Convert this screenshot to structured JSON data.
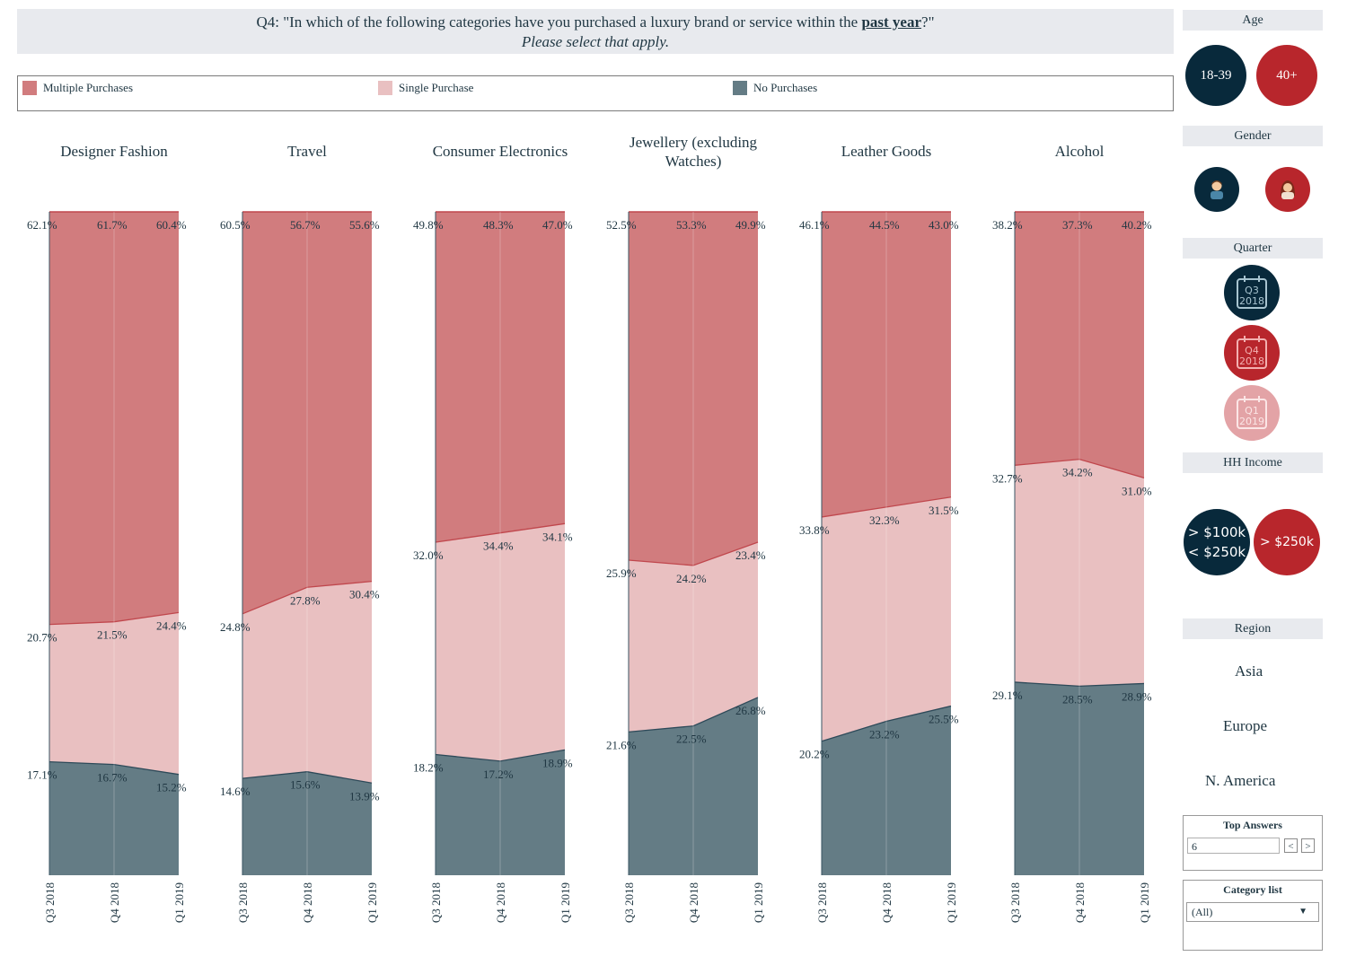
{
  "header": {
    "question_prefix": "Q4: \"In which of the following categories have you purchased a luxury brand or service within the ",
    "question_emphasis": "past year",
    "question_suffix": "?\"",
    "subtitle": "Please select that apply."
  },
  "legend": [
    {
      "label": "Multiple Purchases",
      "color": "#d17c7e"
    },
    {
      "label": "Single Purchase",
      "color": "#e9c0c1"
    },
    {
      "label": "No Purchases",
      "color": "#647c85"
    }
  ],
  "chart_data": {
    "type": "area",
    "stacked": true,
    "normalized": true,
    "quarters": [
      "Q3 2018",
      "Q4 2018",
      "Q1 2019"
    ],
    "series_order": [
      "No Purchases",
      "Single Purchase",
      "Multiple Purchases"
    ],
    "colors": {
      "multiple": "#d17c7e",
      "single": "#e9c0c1",
      "none": "#647c85",
      "multiple_line": "#c0474d",
      "none_line": "#2e4a59"
    },
    "categories": [
      {
        "name": "Designer Fashion",
        "multiple": [
          "62.1%",
          "61.7%",
          "60.4%"
        ],
        "single": [
          "20.7%",
          "21.5%",
          "24.4%"
        ],
        "none": [
          "17.1%",
          "16.7%",
          "15.2%"
        ]
      },
      {
        "name": "Travel",
        "multiple": [
          "60.5%",
          "56.7%",
          "55.6%"
        ],
        "single": [
          "24.8%",
          "27.8%",
          "30.4%"
        ],
        "none": [
          "14.6%",
          "15.6%",
          "13.9%"
        ]
      },
      {
        "name": "Consumer Electronics",
        "multiple": [
          "49.8%",
          "48.3%",
          "47.0%"
        ],
        "single": [
          "32.0%",
          "34.4%",
          "34.1%"
        ],
        "none": [
          "18.2%",
          "17.2%",
          "18.9%"
        ]
      },
      {
        "name": "Jewellery (excluding Watches)",
        "multiple": [
          "52.5%",
          "53.3%",
          "49.9%"
        ],
        "single": [
          "25.9%",
          "24.2%",
          "23.4%"
        ],
        "none": [
          "21.6%",
          "22.5%",
          "26.8%"
        ]
      },
      {
        "name": "Leather Goods",
        "multiple": [
          "46.1%",
          "44.5%",
          "43.0%"
        ],
        "single": [
          "33.8%",
          "32.3%",
          "31.5%"
        ],
        "none": [
          "20.2%",
          "23.2%",
          "25.5%"
        ]
      },
      {
        "name": "Alcohol",
        "multiple": [
          "38.2%",
          "37.3%",
          "40.2%"
        ],
        "single": [
          "32.7%",
          "34.2%",
          "31.0%"
        ],
        "none": [
          "29.1%",
          "28.5%",
          "28.9%"
        ]
      }
    ]
  },
  "filters": {
    "age": {
      "title": "Age",
      "options": [
        "18-39",
        "40+"
      ]
    },
    "gender": {
      "title": "Gender"
    },
    "quarter": {
      "title": "Quarter",
      "options": [
        {
          "q": "Q3",
          "y": "2018"
        },
        {
          "q": "Q4",
          "y": "2018"
        },
        {
          "q": "Q1",
          "y": "2019"
        }
      ]
    },
    "income": {
      "title": "HH Income",
      "low_line1": "> $100k",
      "low_line2": "< $250k",
      "high": "> $250k"
    },
    "region": {
      "title": "Region",
      "options": [
        "Asia",
        "Europe",
        "N. America"
      ]
    },
    "top_answers": {
      "title": "Top Answers",
      "value": "6",
      "prev": "<",
      "next": ">"
    },
    "category_list": {
      "title": "Category list",
      "value": "(All)",
      "arrow": "▼"
    }
  }
}
